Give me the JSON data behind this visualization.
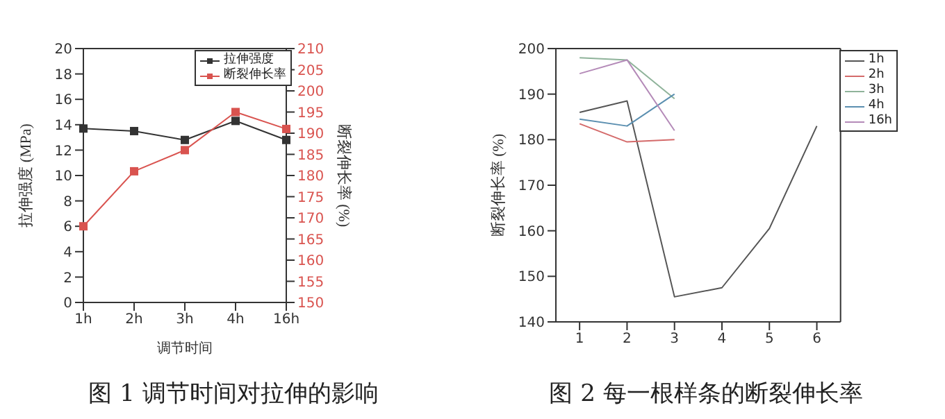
{
  "chart_data": [
    {
      "type": "line",
      "title": "图 1 调节时间对拉伸的影响",
      "xlabel": "调节时间",
      "ylabel": "拉伸强度 (MPa)",
      "y2label": "断裂伸长率 (%)",
      "categories": [
        "1h",
        "2h",
        "3h",
        "4h",
        "16h"
      ],
      "series": [
        {
          "name": "拉伸强度",
          "color": "#333333",
          "values": [
            13.7,
            13.5,
            12.8,
            14.3,
            12.8
          ]
        },
        {
          "name": "断裂伸长率",
          "color": "#d9534f",
          "axis": "y2",
          "values": [
            168,
            181,
            186,
            195,
            191
          ]
        }
      ],
      "ylim": [
        0,
        20
      ],
      "yticks": [
        0,
        2,
        4,
        6,
        8,
        10,
        12,
        14,
        16,
        18,
        20
      ],
      "y2lim": [
        150,
        210
      ],
      "y2ticks": [
        150,
        155,
        160,
        165,
        170,
        175,
        180,
        185,
        190,
        195,
        200,
        205,
        210
      ],
      "marker": "square",
      "grid": false,
      "legend": "top right"
    },
    {
      "type": "line",
      "title": "图 2 每一根样条的断裂伸长率",
      "ylabel": "断裂伸长率 (%)",
      "series": [
        {
          "name": "1h",
          "color": "#555555",
          "x": [
            1,
            2,
            3,
            4,
            5,
            6
          ],
          "values": [
            186,
            188.5,
            145.5,
            147.5,
            160.5,
            183
          ]
        },
        {
          "name": "2h",
          "color": "#d46a6a",
          "x": [
            1,
            2,
            3
          ],
          "values": [
            183.5,
            179.5,
            180
          ]
        },
        {
          "name": "3h",
          "color": "#8fb39a",
          "x": [
            1,
            2,
            3
          ],
          "values": [
            198,
            197.5,
            189
          ]
        },
        {
          "name": "4h",
          "color": "#5b8fb0",
          "x": [
            1,
            2,
            3
          ],
          "values": [
            184.5,
            183,
            190
          ]
        },
        {
          "name": "16h",
          "color": "#b48ab8",
          "x": [
            1,
            2,
            3
          ],
          "values": [
            194.5,
            197.5,
            182
          ]
        }
      ],
      "xlim": [
        0.5,
        6.5
      ],
      "xticks": [
        1,
        2,
        3,
        4,
        5,
        6
      ],
      "ylim": [
        140,
        200
      ],
      "yticks": [
        140,
        150,
        160,
        170,
        180,
        190,
        200
      ],
      "marker": "none",
      "grid": false,
      "legend": "top right"
    }
  ]
}
